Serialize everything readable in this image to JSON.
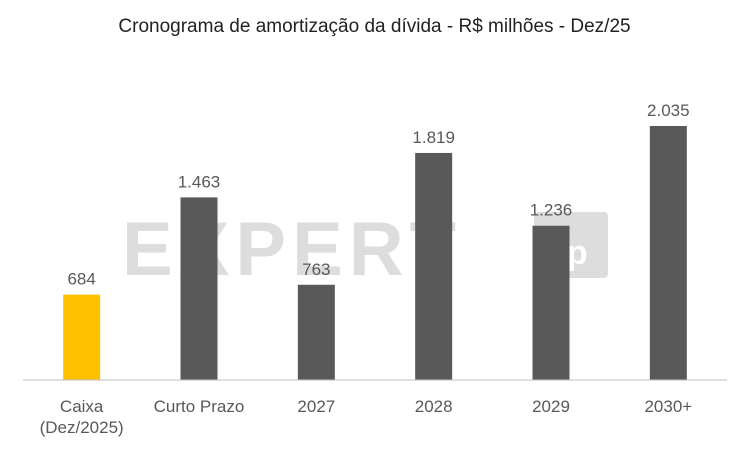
{
  "watermark": {
    "text": "EXPERT",
    "badge": "xp"
  },
  "chart_data": {
    "type": "bar",
    "title": "Cronograma de amortização da dívida - R$ milhões - Dez/25",
    "categories": [
      [
        "Caixa",
        "(Dez/2025)"
      ],
      [
        "Curto Prazo"
      ],
      [
        "2027"
      ],
      [
        "2028"
      ],
      [
        "2029"
      ],
      [
        "2030+"
      ]
    ],
    "values": [
      684,
      1463,
      763,
      1819,
      1236,
      2035
    ],
    "value_labels": [
      "684",
      "1.463",
      "763",
      "1.819",
      "1.236",
      "2.035"
    ],
    "bar_colors": [
      "#FFC000",
      "#595959",
      "#595959",
      "#595959",
      "#595959",
      "#595959"
    ],
    "ylim": [
      0,
      2035
    ],
    "grid": false,
    "legend": "none"
  }
}
